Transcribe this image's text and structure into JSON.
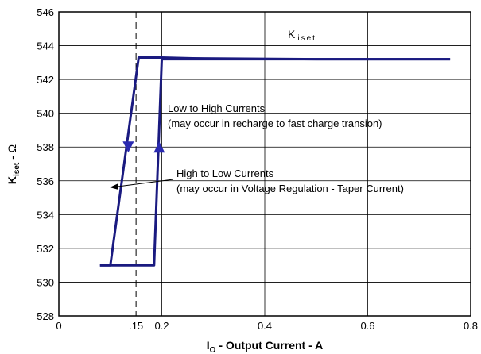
{
  "chart_data": {
    "type": "line",
    "title": "K",
    "title_sub": "iset",
    "xlabel_main": "I",
    "xlabel_sub": "O",
    "xlabel_rest": " - Output Current - A",
    "ylabel_main": "K",
    "ylabel_sub": "iset",
    "ylabel_rest": " - Ω",
    "xlim": [
      0,
      0.8
    ],
    "ylim": [
      528,
      546
    ],
    "x_ticks": [
      {
        "value": 0,
        "label": "0"
      },
      {
        "value": 0.15,
        "label": ".15"
      },
      {
        "value": 0.2,
        "label": "0.2"
      },
      {
        "value": 0.4,
        "label": "0.4"
      },
      {
        "value": 0.6,
        "label": "0.6"
      },
      {
        "value": 0.8,
        "label": "0.8"
      }
    ],
    "y_ticks": [
      528,
      530,
      532,
      534,
      536,
      538,
      540,
      542,
      544,
      546
    ],
    "grid": true,
    "reference_line_x": 0.15,
    "series": [
      {
        "values": [
          [
            0.08,
            531.0
          ],
          [
            0.14,
            531.0
          ],
          [
            0.17,
            531.0
          ],
          [
            0.185,
            531.0
          ],
          [
            0.2,
            543.2
          ],
          [
            0.26,
            543.2
          ],
          [
            0.5,
            543.2
          ],
          [
            0.76,
            543.2
          ]
        ]
      },
      {
        "values": [
          [
            0.76,
            543.2
          ],
          [
            0.5,
            543.2
          ],
          [
            0.26,
            543.25
          ],
          [
            0.2,
            543.3
          ],
          [
            0.17,
            543.3
          ],
          [
            0.155,
            543.3
          ],
          [
            0.1,
            531.0
          ],
          [
            0.08,
            531.0
          ]
        ]
      }
    ],
    "arrows": [
      {
        "x": 0.135,
        "y": 538,
        "direction": "down"
      },
      {
        "x": 0.195,
        "y": 538,
        "direction": "up"
      }
    ],
    "annotations": [
      {
        "line1": "Low to High Currents",
        "line2": "(may occur in recharge to fast charge transion)"
      },
      {
        "line1": "High to Low Currents",
        "line2": "(may occur in Voltage Regulation - Taper Current)"
      }
    ],
    "colors": {
      "curve": "#1a1a80",
      "grid": "#000000",
      "reference": "#000000"
    }
  }
}
